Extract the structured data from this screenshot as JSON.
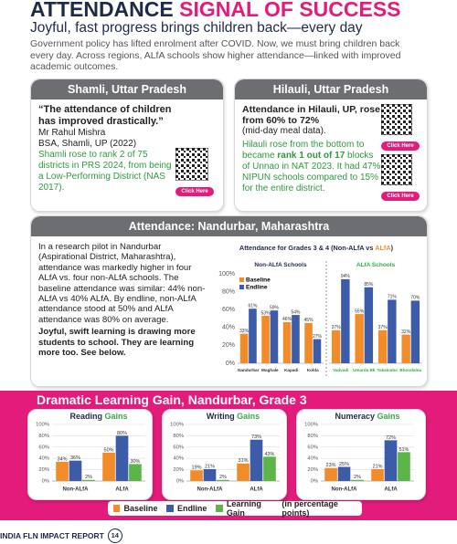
{
  "header": {
    "title": "ATTENDANCE",
    "title_highlight": "SIGNAL OF SUCCESS",
    "subtitle": "Joyful, fast progress brings children back—every day",
    "intro": "Government policy has lifted enrolment after COVID. Now, we must bring children back every day. Across regions, ALfA schools show higher attendance—linked with improved academic outcomes."
  },
  "shamli": {
    "heading": "Shamli, Uttar Pradesh",
    "quote": "“The attendance of children has improved drastically.”",
    "name": "Mr Rahul Mishra",
    "role": "BSA, Shamli, UP (2022)",
    "note": "Shamli rose to rank 2 of 75 districts in PRS 2024, from being a Low-Performing District (NAS 2017).",
    "button": "Click Here"
  },
  "hilauli": {
    "heading": "Hilauli, Uttar Pradesh",
    "lead": "Attendance in Hilauli, UP, rose from 60% to 72%",
    "lead_note": "(mid-day meal data).",
    "note_parts": [
      "Hilauli rose from the bottom to became ",
      "rank 1 out of 17",
      " blocks of Unnao in NAT 2023. It had 47% NIPUN schools compared to 15% for the entire district."
    ],
    "buttons": [
      "Click Here",
      "Click Here"
    ]
  },
  "nandurbar": {
    "heading": "Attendance: Nandurbar, Maharashtra",
    "text": "In a research pilot in Nandurbar (Aspirational District, Maharashtra), attendance was markedly higher in four ALfA vs. four non-ALfA schools. The baseline attendance was similar: 44% non-ALfA vs 40% ALfA. By endline, non-ALfA attendance stood at 50% and ALfA attendance was 80% on average.",
    "conclusion": "Joyful, swift learning is drawing more students to school. They are learning more too. See below.",
    "chart_title": [
      "Attendance for Grades 3 & 4 (Non-ALfA vs ",
      "ALfA",
      ")"
    ]
  },
  "learning": {
    "title": "Dramatic Learning Gain, Nandurbar, Grade 3",
    "legend_note": "(in percentage points)"
  },
  "chart_data": [
    {
      "type": "bar",
      "title": "Non-ALfA Schools",
      "categories": [
        "Nandurbar",
        "Waghale",
        "Kapadi",
        "Kolda"
      ],
      "series": [
        {
          "name": "Baseline",
          "color": "#f28c28",
          "values": [
            33,
            53,
            46,
            45
          ],
          "value_labels": [
            "33%",
            "53%",
            "46%",
            "45%"
          ]
        },
        {
          "name": "Endline",
          "color": "#3c5ba9",
          "values": [
            61,
            59,
            54,
            27
          ],
          "value_labels": [
            "61%",
            "59%",
            "54%",
            "27%"
          ]
        }
      ],
      "ylim": [
        0,
        100
      ],
      "yticks": [
        {
          "value": 0,
          "label": "0%"
        },
        {
          "value": 20,
          "label": "20%"
        },
        {
          "value": 40,
          "label": "40%"
        },
        {
          "value": 60,
          "label": "60%"
        },
        {
          "value": 80,
          "label": "80%"
        },
        {
          "value": 100,
          "label": "100%"
        }
      ],
      "legend": "top-left",
      "grid": false
    },
    {
      "type": "bar",
      "title": "ALfA Schools",
      "title_color": "#3aa648",
      "category_color": "#3aa648",
      "categories": [
        "Vadvadi",
        "Umarda Bk",
        "Takalnabo",
        "Bhoodalna"
      ],
      "series": [
        {
          "color": "#f28c28",
          "values": [
            37,
            55,
            37,
            32
          ],
          "value_labels": [
            "37%",
            "55%",
            "37%",
            "32%"
          ]
        },
        {
          "color": "#3c5ba9",
          "values": [
            94,
            85,
            71,
            70
          ],
          "value_labels": [
            "94%",
            "85%",
            "71%",
            "70%"
          ]
        }
      ],
      "ylim": [
        0,
        100
      ],
      "grid": false
    },
    {
      "type": "bar",
      "title": "Reading",
      "title_highlight": "Gains",
      "categories": [
        "Non-ALfA",
        "ALfA"
      ],
      "series": [
        {
          "name": "Baseline",
          "color": "#f28c28",
          "values": [
            34,
            50
          ],
          "value_labels": [
            "34%",
            "50%"
          ]
        },
        {
          "name": "Endline",
          "color": "#3c5ba9",
          "values": [
            36,
            80
          ],
          "value_labels": [
            "36%",
            "80%"
          ]
        },
        {
          "name": "Learning Gain",
          "color": "#5cb547",
          "values": [
            2,
            30
          ],
          "value_labels": [
            "2%",
            "30%"
          ]
        }
      ],
      "ylim": [
        0,
        100
      ],
      "yticks": [
        {
          "value": 0,
          "label": "0%"
        },
        {
          "value": 20,
          "label": "20%"
        },
        {
          "value": 40,
          "label": "40%"
        },
        {
          "value": 60,
          "label": "60%"
        },
        {
          "value": 80,
          "label": "80%"
        },
        {
          "value": 100,
          "label": "100%"
        }
      ],
      "grid": true,
      "legend": "bottom"
    },
    {
      "type": "bar",
      "title": "Writing",
      "title_highlight": "Gains",
      "categories": [
        "Non-ALfA",
        "ALfA"
      ],
      "series": [
        {
          "color": "#f28c28",
          "values": [
            19,
            31
          ],
          "value_labels": [
            "19%",
            "31%"
          ]
        },
        {
          "color": "#3c5ba9",
          "values": [
            21,
            73
          ],
          "value_labels": [
            "21%",
            "73%"
          ]
        },
        {
          "color": "#5cb547",
          "values": [
            2,
            43
          ],
          "value_labels": [
            "2%",
            "43%"
          ]
        }
      ],
      "ylim": [
        0,
        100
      ],
      "yticks": [
        {
          "value": 0,
          "label": "0%"
        },
        {
          "value": 20,
          "label": "20%"
        },
        {
          "value": 40,
          "label": "40%"
        },
        {
          "value": 60,
          "label": "60%"
        },
        {
          "value": 80,
          "label": "80%"
        },
        {
          "value": 100,
          "label": "100%"
        }
      ],
      "grid": true
    },
    {
      "type": "bar",
      "title": "Numeracy",
      "title_highlight": "Gains",
      "categories": [
        "Non-ALfA",
        "ALfA"
      ],
      "series": [
        {
          "color": "#f28c28",
          "values": [
            23,
            21
          ],
          "value_labels": [
            "23%",
            "21%"
          ]
        },
        {
          "color": "#3c5ba9",
          "values": [
            25,
            72
          ],
          "value_labels": [
            "25%",
            "72%"
          ]
        },
        {
          "color": "#5cb547",
          "values": [
            2,
            51
          ],
          "value_labels": [
            "2%",
            "51%"
          ]
        }
      ],
      "ylim": [
        0,
        100
      ],
      "yticks": [
        {
          "value": 0,
          "label": "0%"
        },
        {
          "value": 20,
          "label": "20%"
        },
        {
          "value": 40,
          "label": "40%"
        },
        {
          "value": 60,
          "label": "60%"
        },
        {
          "value": 80,
          "label": "80%"
        },
        {
          "value": 100,
          "label": "100%"
        }
      ],
      "grid": true
    }
  ],
  "footer": {
    "report": "INDIA FLN IMPACT REPORT",
    "page": "14"
  }
}
